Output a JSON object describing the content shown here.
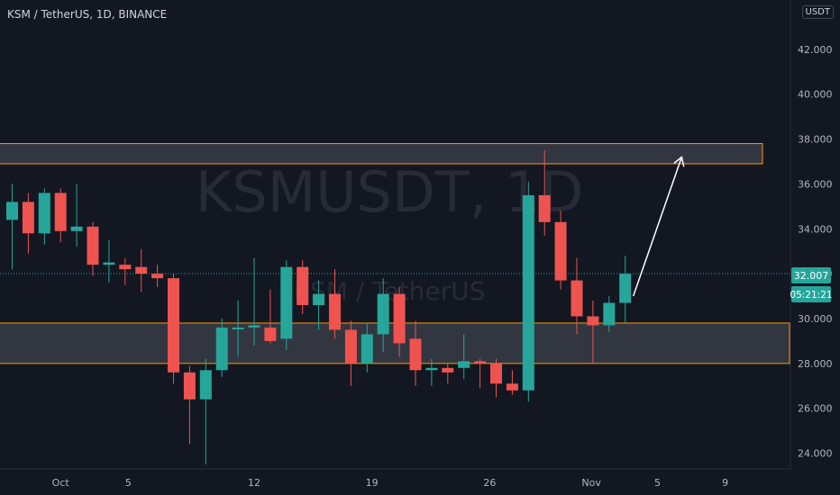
{
  "header": {
    "symbol_title": "KSM / TetherUS, 1D, BINANCE",
    "currency_badge": "USDT"
  },
  "watermark": {
    "main": "KSMUSDT, 1D",
    "sub": "KSM / TetherUS"
  },
  "price_axis": {
    "ticks": [
      "24.000",
      "26.000",
      "28.000",
      "30.000",
      "32.000",
      "34.000",
      "36.000",
      "38.000",
      "40.000",
      "42.000"
    ],
    "current_price_label": "32.007",
    "countdown_label": "05:21:21"
  },
  "time_axis": {
    "labels": [
      "Oct",
      "5",
      "12",
      "19",
      "26",
      "Nov",
      "5",
      "9"
    ]
  },
  "colors": {
    "up": "#26a69a",
    "down": "#ef5350",
    "zone_border": "#ff9800",
    "zone_fill": "#434651",
    "arrow": "#ffffff",
    "price_line": "#26a69a"
  },
  "chart_data": {
    "type": "candlestick",
    "title": "KSM / TetherUS, 1D, BINANCE",
    "ylim": [
      23.3,
      44.2
    ],
    "x_dates": [
      "Oct",
      "5",
      "12",
      "19",
      "26",
      "Nov",
      "5",
      "9"
    ],
    "candles": [
      {
        "o": 34.4,
        "h": 36.0,
        "l": 32.2,
        "c": 35.2
      },
      {
        "o": 35.2,
        "h": 35.6,
        "l": 32.9,
        "c": 33.8
      },
      {
        "o": 33.8,
        "h": 35.8,
        "l": 33.3,
        "c": 35.6
      },
      {
        "o": 35.6,
        "h": 35.8,
        "l": 33.4,
        "c": 33.9
      },
      {
        "o": 33.9,
        "h": 36.0,
        "l": 33.2,
        "c": 34.1
      },
      {
        "o": 34.1,
        "h": 34.3,
        "l": 31.9,
        "c": 32.4
      },
      {
        "o": 32.4,
        "h": 33.5,
        "l": 31.6,
        "c": 32.5
      },
      {
        "o": 32.4,
        "h": 32.7,
        "l": 31.5,
        "c": 32.2
      },
      {
        "o": 32.3,
        "h": 33.1,
        "l": 31.2,
        "c": 32.0
      },
      {
        "o": 32.0,
        "h": 32.4,
        "l": 31.4,
        "c": 31.8
      },
      {
        "o": 31.8,
        "h": 32.0,
        "l": 27.1,
        "c": 27.6
      },
      {
        "o": 27.6,
        "h": 27.9,
        "l": 24.4,
        "c": 26.4
      },
      {
        "o": 26.4,
        "h": 28.2,
        "l": 23.5,
        "c": 27.7
      },
      {
        "o": 27.7,
        "h": 30.0,
        "l": 27.4,
        "c": 29.6
      },
      {
        "o": 29.6,
        "h": 30.8,
        "l": 28.3,
        "c": 29.6
      },
      {
        "o": 29.6,
        "h": 32.7,
        "l": 28.8,
        "c": 29.7
      },
      {
        "o": 29.6,
        "h": 31.3,
        "l": 28.9,
        "c": 29.0
      },
      {
        "o": 29.1,
        "h": 32.6,
        "l": 28.6,
        "c": 32.3
      },
      {
        "o": 32.3,
        "h": 32.6,
        "l": 30.2,
        "c": 30.6
      },
      {
        "o": 30.6,
        "h": 31.7,
        "l": 29.5,
        "c": 31.1
      },
      {
        "o": 31.1,
        "h": 32.2,
        "l": 29.1,
        "c": 29.5
      },
      {
        "o": 29.5,
        "h": 29.9,
        "l": 27.0,
        "c": 28.0
      },
      {
        "o": 28.0,
        "h": 29.8,
        "l": 27.6,
        "c": 29.3
      },
      {
        "o": 29.3,
        "h": 31.8,
        "l": 28.5,
        "c": 31.1
      },
      {
        "o": 31.1,
        "h": 31.4,
        "l": 28.3,
        "c": 28.9
      },
      {
        "o": 29.1,
        "h": 29.9,
        "l": 27.0,
        "c": 27.7
      },
      {
        "o": 27.7,
        "h": 28.2,
        "l": 27.0,
        "c": 27.8
      },
      {
        "o": 27.8,
        "h": 28.0,
        "l": 27.1,
        "c": 27.6
      },
      {
        "o": 27.8,
        "h": 29.3,
        "l": 27.3,
        "c": 28.1
      },
      {
        "o": 28.1,
        "h": 28.2,
        "l": 26.9,
        "c": 28.0
      },
      {
        "o": 28.0,
        "h": 28.2,
        "l": 26.5,
        "c": 27.1
      },
      {
        "o": 27.1,
        "h": 27.7,
        "l": 26.6,
        "c": 26.8
      },
      {
        "o": 26.8,
        "h": 36.1,
        "l": 26.3,
        "c": 35.5
      },
      {
        "o": 35.5,
        "h": 37.5,
        "l": 33.7,
        "c": 34.3
      },
      {
        "o": 34.3,
        "h": 34.8,
        "l": 31.3,
        "c": 31.7
      },
      {
        "o": 31.7,
        "h": 32.7,
        "l": 29.3,
        "c": 30.1
      },
      {
        "o": 30.1,
        "h": 30.8,
        "l": 28.0,
        "c": 29.7
      },
      {
        "o": 29.7,
        "h": 31.0,
        "l": 29.4,
        "c": 30.7
      },
      {
        "o": 30.7,
        "h": 32.8,
        "l": 29.8,
        "c": 32.0
      }
    ],
    "zones": [
      {
        "name": "resistance",
        "low": 36.9,
        "high": 37.8
      },
      {
        "name": "support",
        "low": 28.0,
        "high": 29.8
      }
    ],
    "projection": {
      "from_index": 38.5,
      "from_price": 31.0,
      "to_index": 41.5,
      "to_price": 37.2
    },
    "last_price": 32.007
  }
}
